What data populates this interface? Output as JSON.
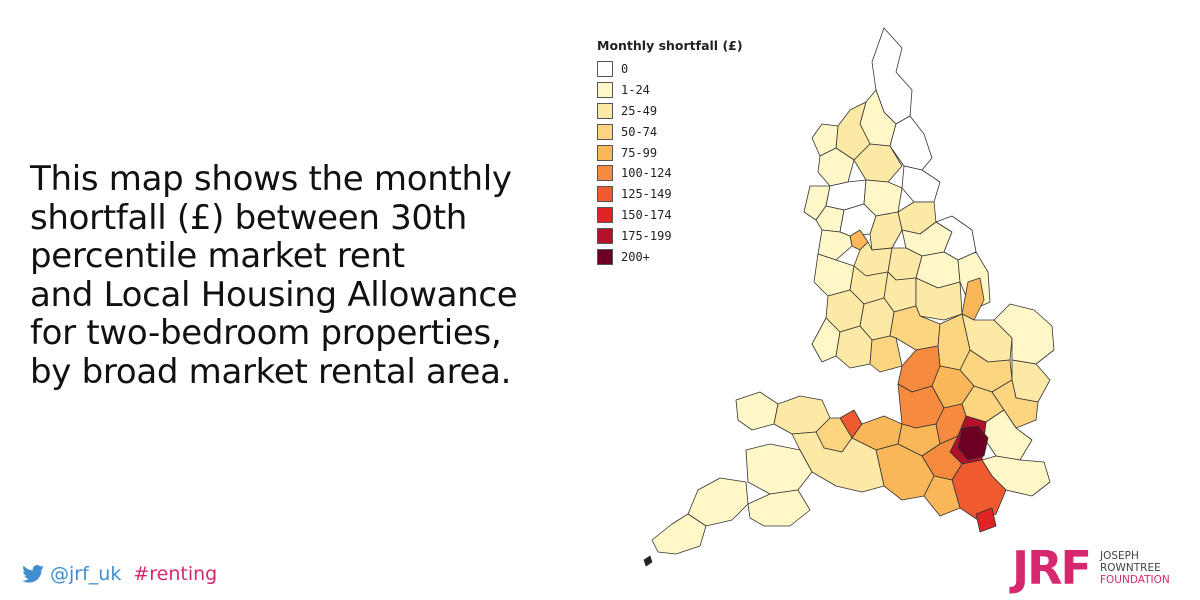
{
  "headline": {
    "lines": [
      "This map shows the monthly",
      "shortfall (£) between 30th",
      "percentile market rent",
      "and Local Housing Allowance",
      "for two-bedroom properties,",
      "by broad market rental area."
    ]
  },
  "legend": {
    "title": "Monthly shortfall (£)",
    "items": [
      {
        "label": "0",
        "color": "#ffffff"
      },
      {
        "label": "1-24",
        "color": "#fff7c8"
      },
      {
        "label": "25-49",
        "color": "#fde9a6"
      },
      {
        "label": "50-74",
        "color": "#fcd580"
      },
      {
        "label": "75-99",
        "color": "#f9b75a"
      },
      {
        "label": "100-124",
        "color": "#f68b3f"
      },
      {
        "label": "125-149",
        "color": "#f05a2f"
      },
      {
        "label": "150-174",
        "color": "#e02424"
      },
      {
        "label": "175-199",
        "color": "#b3102a"
      },
      {
        "label": "200+",
        "color": "#6d0022"
      }
    ]
  },
  "footer": {
    "icon": "twitter-bird-icon",
    "handle": "@jrf_uk",
    "hashtag": "#renting"
  },
  "logo": {
    "mark": "JRF",
    "line1": "JOSEPH",
    "line2": "ROWNTREE",
    "line3": "FOUNDATION",
    "color": "#d6286f"
  }
}
